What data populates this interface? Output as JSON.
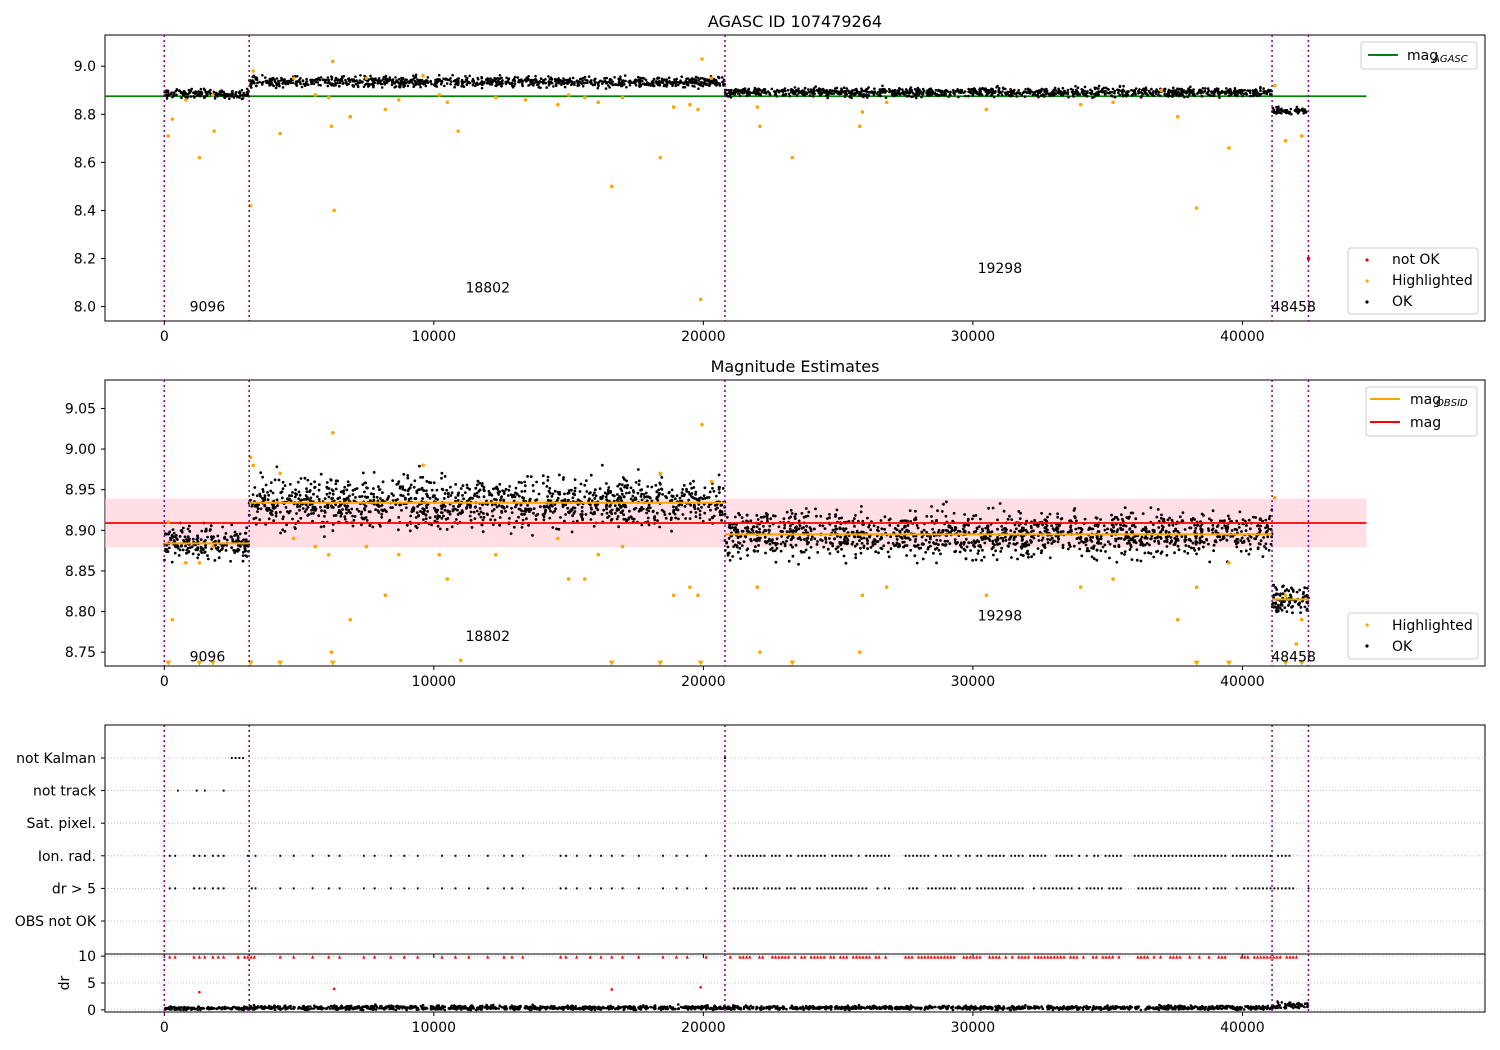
{
  "chart_data": [
    {
      "type": "scatter",
      "title": "AGASC ID 107479264",
      "xlabel": "",
      "ylabel": "",
      "xlim": [
        -2200,
        49000
      ],
      "ylim": [
        7.94,
        9.13
      ],
      "xticks": [
        0,
        10000,
        20000,
        30000,
        40000
      ],
      "yticks": [
        8.0,
        8.2,
        8.4,
        8.6,
        8.8,
        9.0
      ],
      "ytick_labels": [
        "8.0",
        "8.2",
        "8.4",
        "8.6",
        "8.8",
        "9.0"
      ],
      "grid": false,
      "obsid_boundaries": [
        0,
        3150,
        20800,
        41100,
        42450
      ],
      "obsid_labels": [
        {
          "text": "9096",
          "x": 1600,
          "y": 8.0
        },
        {
          "text": "18802",
          "x": 12000,
          "y": 8.08
        },
        {
          "text": "19298",
          "x": 31000,
          "y": 8.16
        },
        {
          "text": "48458",
          "x": 41900,
          "y": 8.0
        }
      ],
      "reference_lines": [
        {
          "name": "mag_AGASC",
          "y": 8.875,
          "x_range": [
            -2200,
            44600
          ],
          "color": "#008000"
        }
      ],
      "series": [
        {
          "name": "OK",
          "color": "#000000",
          "segments": [
            {
              "x": [
                0,
                3150
              ],
              "y": 8.885,
              "spread": 0.018
            },
            {
              "x": [
                3150,
                20800
              ],
              "y": 8.935,
              "spread": 0.022
            },
            {
              "x": [
                20800,
                41100
              ],
              "y": 8.892,
              "spread": 0.018
            },
            {
              "x": [
                41100,
                42450
              ],
              "y": 8.815,
              "spread": 0.015
            }
          ]
        },
        {
          "name": "Highlighted",
          "color": "#FFA500",
          "points": [
            [
              150,
              8.71
            ],
            [
              300,
              8.78
            ],
            [
              800,
              8.86
            ],
            [
              1300,
              8.62
            ],
            [
              1800,
              8.88
            ],
            [
              1850,
              8.73
            ],
            [
              3200,
              8.42
            ],
            [
              3300,
              8.98
            ],
            [
              4300,
              8.72
            ],
            [
              4800,
              8.95
            ],
            [
              5600,
              8.88
            ],
            [
              6100,
              8.87
            ],
            [
              6200,
              8.75
            ],
            [
              6300,
              8.4
            ],
            [
              6250,
              9.02
            ],
            [
              6900,
              8.79
            ],
            [
              7500,
              8.95
            ],
            [
              8200,
              8.82
            ],
            [
              8700,
              8.86
            ],
            [
              9600,
              8.96
            ],
            [
              10200,
              8.88
            ],
            [
              10500,
              8.85
            ],
            [
              10900,
              8.73
            ],
            [
              12300,
              8.87
            ],
            [
              13400,
              8.86
            ],
            [
              14600,
              8.84
            ],
            [
              15000,
              8.88
            ],
            [
              15600,
              8.87
            ],
            [
              16100,
              8.85
            ],
            [
              16600,
              8.5
            ],
            [
              17000,
              8.87
            ],
            [
              18400,
              8.62
            ],
            [
              18900,
              8.83
            ],
            [
              19500,
              8.84
            ],
            [
              19800,
              8.82
            ],
            [
              19950,
              9.03
            ],
            [
              19900,
              8.03
            ],
            [
              20300,
              8.95
            ],
            [
              22000,
              8.83
            ],
            [
              22100,
              8.75
            ],
            [
              23300,
              8.62
            ],
            [
              25800,
              8.75
            ],
            [
              25900,
              8.81
            ],
            [
              26800,
              8.85
            ],
            [
              30500,
              8.82
            ],
            [
              34000,
              8.84
            ],
            [
              35200,
              8.85
            ],
            [
              37000,
              8.9
            ],
            [
              37600,
              8.79
            ],
            [
              38300,
              8.41
            ],
            [
              39500,
              8.66
            ],
            [
              41200,
              8.92
            ],
            [
              41600,
              8.69
            ],
            [
              42200,
              8.71
            ]
          ]
        },
        {
          "name": "not OK",
          "color": "#FF0000",
          "points": [
            [
              42450,
              8.2
            ]
          ]
        }
      ],
      "legend_top": [
        "mag_AGASC"
      ],
      "legend_bottom": [
        "not OK",
        "Highlighted",
        "OK"
      ],
      "legend_labels": {
        "mag_AGASC": "mag",
        "not OK": "not OK",
        "Highlighted": "Highlighted",
        "OK": "OK"
      },
      "legend_subscripts": {
        "mag_AGASC": "AGASC"
      }
    },
    {
      "type": "scatter",
      "title": "Magnitude Estimates",
      "xlabel": "",
      "ylabel": "",
      "xlim": [
        -2200,
        49000
      ],
      "ylim": [
        8.733,
        9.085
      ],
      "xticks": [
        0,
        10000,
        20000,
        30000,
        40000
      ],
      "yticks": [
        8.75,
        8.8,
        8.85,
        8.9,
        8.95,
        9.0,
        9.05
      ],
      "ytick_labels": [
        "8.75",
        "8.80",
        "8.85",
        "8.90",
        "8.95",
        "9.00",
        "9.05"
      ],
      "grid": false,
      "obsid_boundaries": [
        0,
        3150,
        20800,
        41100,
        42450
      ],
      "obsid_labels": [
        {
          "text": "9096",
          "x": 1600,
          "y": 8.745
        },
        {
          "text": "18802",
          "x": 12000,
          "y": 8.77
        },
        {
          "text": "19298",
          "x": 31000,
          "y": 8.795
        },
        {
          "text": "48458",
          "x": 41900,
          "y": 8.745
        }
      ],
      "band": {
        "y": [
          8.879,
          8.939
        ],
        "x_range": [
          -2200,
          44600
        ],
        "color": "#FFC0CB"
      },
      "reference_lines": [
        {
          "name": "mag",
          "y": 8.909,
          "x_range": [
            -2200,
            44600
          ],
          "color": "#FF0000"
        }
      ],
      "obsid_means": {
        "name": "mag_OBSID",
        "color": "#FFA500",
        "segments": [
          {
            "x": [
              0,
              3150
            ],
            "y": 8.884
          },
          {
            "x": [
              3150,
              20800
            ],
            "y": 8.934
          },
          {
            "x": [
              20800,
              41100
            ],
            "y": 8.895
          },
          {
            "x": [
              41100,
              42450
            ],
            "y": 8.815
          }
        ]
      },
      "series": [
        {
          "name": "OK",
          "color": "#000000",
          "segments": [
            {
              "x": [
                0,
                3150
              ],
              "y": 8.884,
              "spread": 0.02
            },
            {
              "x": [
                3150,
                20800
              ],
              "y": 8.934,
              "spread": 0.03
            },
            {
              "x": [
                20800,
                41100
              ],
              "y": 8.895,
              "spread": 0.028
            },
            {
              "x": [
                41100,
                42450
              ],
              "y": 8.815,
              "spread": 0.018
            }
          ]
        },
        {
          "name": "Highlighted",
          "color": "#FFA500",
          "points": [
            [
              150,
              8.91
            ],
            [
              300,
              8.79
            ],
            [
              800,
              8.86
            ],
            [
              1300,
              8.86
            ],
            [
              1800,
              8.88
            ],
            [
              3200,
              8.99
            ],
            [
              3300,
              8.98
            ],
            [
              4300,
              8.97
            ],
            [
              4800,
              8.89
            ],
            [
              5600,
              8.88
            ],
            [
              6100,
              8.87
            ],
            [
              6200,
              8.75
            ],
            [
              6250,
              9.02
            ],
            [
              6900,
              8.79
            ],
            [
              7500,
              8.88
            ],
            [
              8200,
              8.82
            ],
            [
              8700,
              8.87
            ],
            [
              9600,
              8.98
            ],
            [
              10200,
              8.87
            ],
            [
              10500,
              8.84
            ],
            [
              11000,
              8.74
            ],
            [
              12300,
              8.87
            ],
            [
              14600,
              8.89
            ],
            [
              15000,
              8.84
            ],
            [
              15600,
              8.84
            ],
            [
              16100,
              8.87
            ],
            [
              17000,
              8.88
            ],
            [
              18400,
              8.97
            ],
            [
              18900,
              8.82
            ],
            [
              19500,
              8.83
            ],
            [
              19800,
              8.82
            ],
            [
              19950,
              9.03
            ],
            [
              20300,
              8.96
            ],
            [
              22000,
              8.83
            ],
            [
              22100,
              8.75
            ],
            [
              25800,
              8.75
            ],
            [
              25900,
              8.82
            ],
            [
              26800,
              8.83
            ],
            [
              30500,
              8.82
            ],
            [
              34000,
              8.83
            ],
            [
              35200,
              8.84
            ],
            [
              37600,
              8.79
            ],
            [
              38300,
              8.83
            ],
            [
              39500,
              8.86
            ],
            [
              41200,
              8.94
            ],
            [
              41600,
              8.82
            ],
            [
              42000,
              8.76
            ],
            [
              42200,
              8.79
            ]
          ]
        }
      ],
      "off_scale_markers": {
        "color": "#FFA500",
        "y": 8.736,
        "x": [
          150,
          1300,
          1800,
          3200,
          4300,
          6250,
          16600,
          18400,
          19900,
          23300,
          38300,
          39500,
          41600,
          42200
        ]
      },
      "legend_top": [
        "mag_OBSID",
        "mag"
      ],
      "legend_bottom": [
        "Highlighted",
        "OK"
      ],
      "legend_labels": {
        "mag_OBSID": "mag",
        "mag": "mag",
        "Highlighted": "Highlighted",
        "OK": "OK"
      },
      "legend_subscripts": {
        "mag_OBSID": "OBSID"
      }
    },
    {
      "type": "scatter",
      "title": "",
      "xlabel": "",
      "ylabel": "",
      "xlim": [
        -2200,
        49000
      ],
      "categories": [
        "not Kalman",
        "not track",
        "Sat. pixel.",
        "Ion. rad.",
        "dr > 5",
        "OBS not OK"
      ],
      "grid": "horizontal dotted",
      "obsid_boundaries": [
        0,
        3150,
        20800,
        41100,
        42450
      ],
      "flags": [
        {
          "category": "not Kalman",
          "ranges": [
            [
              2500,
              3050
            ]
          ],
          "points": [
            20800
          ]
        },
        {
          "category": "not track",
          "ranges": [],
          "points": [
            500,
            1200,
            1500,
            2200
          ]
        },
        {
          "category": "Sat. pixel.",
          "ranges": [],
          "points": []
        },
        {
          "category": "Ion. rad.",
          "ranges": [
            [
              3100,
              3400
            ],
            [
              21000,
              27000
            ],
            [
              27500,
              35500
            ],
            [
              36000,
              42000
            ]
          ],
          "points": [
            200,
            400,
            1100,
            1300,
            1500,
            1800,
            2000,
            2200,
            4300,
            4800,
            5500,
            6100,
            6500,
            7400,
            7800,
            8400,
            8900,
            9400,
            10300,
            10800,
            11300,
            12000,
            12600,
            12900,
            13300,
            14700,
            14900,
            15300,
            15800,
            16200,
            16600,
            17000,
            17600,
            18500,
            19000,
            19400,
            20100
          ]
        },
        {
          "category": "dr > 5",
          "ranges": [
            [
              3100,
              3400
            ],
            [
              21000,
              27000
            ],
            [
              27500,
              35500
            ],
            [
              36000,
              42000
            ]
          ],
          "points": [
            200,
            400,
            1100,
            1300,
            1500,
            1800,
            2000,
            2200,
            4300,
            4800,
            5500,
            6100,
            6500,
            7400,
            7800,
            8400,
            8900,
            9400,
            10300,
            10800,
            11300,
            12000,
            12600,
            12900,
            13300,
            14700,
            14900,
            15300,
            15800,
            16200,
            16600,
            17000,
            17600,
            18500,
            19000,
            19400,
            20100,
            42450
          ]
        },
        {
          "category": "OBS not OK",
          "ranges": [],
          "points": []
        }
      ]
    },
    {
      "type": "scatter",
      "title": "",
      "xlabel": "",
      "ylabel": "dr",
      "xlim": [
        -2200,
        49000
      ],
      "ylim": [
        -0.4,
        10.4
      ],
      "xticks": [
        0,
        10000,
        20000,
        30000,
        40000
      ],
      "xtick_labels": [
        "0",
        "10000",
        "20000",
        "30000",
        "40000"
      ],
      "yticks": [
        0,
        5,
        10
      ],
      "ytick_labels": [
        "0",
        "5",
        "10"
      ],
      "grid": "horizontal dotted",
      "obsid_boundaries": [
        0,
        3150,
        20800,
        41100,
        42450
      ],
      "series": [
        {
          "name": "dr",
          "color": "#000000",
          "segments": [
            {
              "x": [
                0,
                3150
              ],
              "y": 0.3,
              "spread": 0.3
            },
            {
              "x": [
                3150,
                20800
              ],
              "y": 0.4,
              "spread": 0.4
            },
            {
              "x": [
                20800,
                41100
              ],
              "y": 0.4,
              "spread": 0.35
            },
            {
              "x": [
                41100,
                42450
              ],
              "y": 0.8,
              "spread": 0.6
            }
          ]
        },
        {
          "name": "dr > 10",
          "color": "#FF0000",
          "ranges": [
            [
              3100,
              3400
            ],
            [
              2500,
              3050
            ],
            [
              21000,
              27000
            ],
            [
              27500,
              35500
            ],
            [
              36000,
              42000
            ]
          ],
          "points": [
            200,
            400,
            1100,
            1300,
            1500,
            1800,
            2000,
            2200,
            4300,
            4800,
            5500,
            6100,
            6500,
            7400,
            7800,
            8400,
            8900,
            9400,
            10300,
            10800,
            11300,
            12000,
            12600,
            12900,
            13300,
            14700,
            14900,
            15300,
            15800,
            16200,
            16600,
            17000,
            17600,
            18500,
            19000,
            19400,
            20100
          ],
          "y": 9.9
        },
        {
          "name": "dr outliers",
          "color": "#FF0000",
          "points_xy": [
            [
              1300,
              3.3
            ],
            [
              6300,
              3.9
            ],
            [
              16600,
              3.8
            ],
            [
              19900,
              4.2
            ]
          ]
        }
      ]
    }
  ]
}
